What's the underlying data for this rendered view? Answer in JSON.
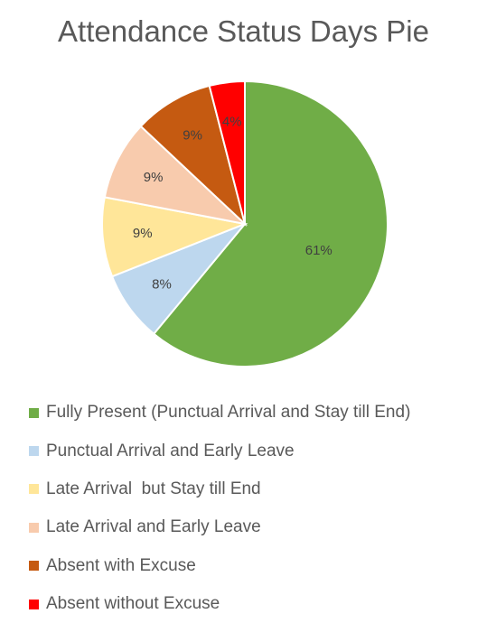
{
  "chart_data": {
    "type": "pie",
    "title": "Attendance Status Days Pie",
    "legend_position": "bottom",
    "slices": [
      {
        "name": "Fully Present (Punctual Arrival and Stay till End)",
        "value": 61,
        "label": "61%",
        "color": "#70AD47"
      },
      {
        "name": "Punctual Arrival and Early Leave",
        "value": 8,
        "label": "8%",
        "color": "#BDD7EE"
      },
      {
        "name": "Late Arrival  but Stay till End",
        "value": 9,
        "label": "9%",
        "color": "#FFE699"
      },
      {
        "name": "Late Arrival and Early Leave",
        "value": 9,
        "label": "9%",
        "color": "#F8CBAD"
      },
      {
        "name": "Absent with Excuse",
        "value": 9,
        "label": "9%",
        "color": "#C55A11"
      },
      {
        "name": "Absent without Excuse",
        "value": 4,
        "label": "4%",
        "color": "#FF0000"
      }
    ]
  }
}
